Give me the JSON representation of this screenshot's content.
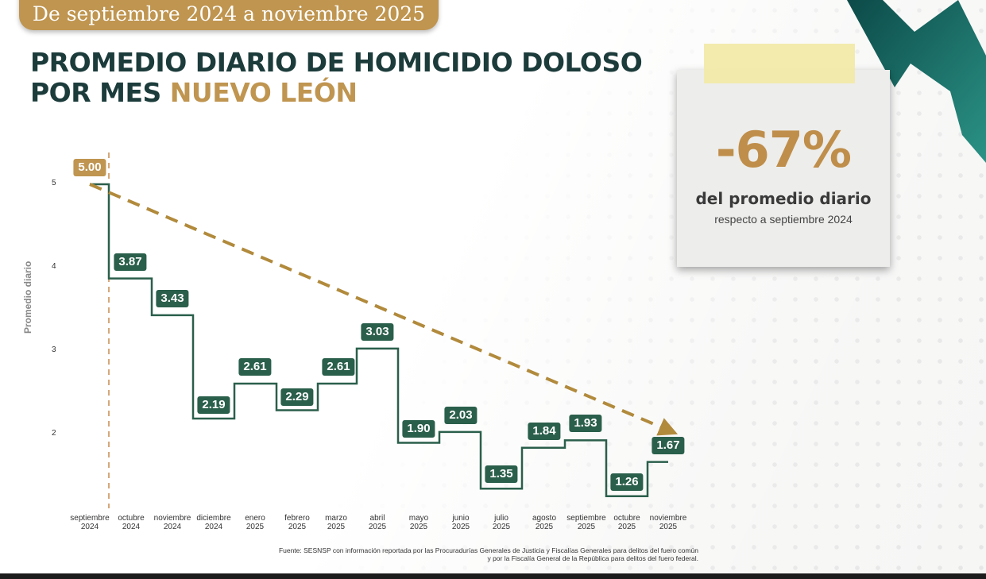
{
  "header": {
    "range": "De septiembre 2024 a noviembre 2025",
    "title_line1": "PROMEDIO DIARIO DE HOMICIDIO DOLOSO",
    "title_line2_prefix": "POR MES",
    "title_line2_accent": "NUEVO LEÓN"
  },
  "callout": {
    "percent": "-67%",
    "line1": "del promedio diario",
    "line2": "respecto a septiembre 2024"
  },
  "source": {
    "line1": "Fuente: SESNSP con información reportada por las Procuradurías Generales de Justicia y Fiscalías Generales para delitos del fuero común",
    "line2": "y por la Fiscalía General de la República para delitos del fuero federal."
  },
  "colors": {
    "accent_gold": "#bf9550",
    "line_green": "#2a5f4b",
    "title_dark": "#1c3b3b"
  },
  "chart_data": {
    "type": "line",
    "subtype": "step",
    "title": "Promedio diario de homicidio doloso por mes Nuevo León",
    "xlabel": "",
    "ylabel": "Promedio diario",
    "yticks": [
      "5",
      "4",
      "3",
      "2"
    ],
    "ylim": [
      1.1,
      5.1
    ],
    "categories": [
      [
        "septiembre",
        "2024"
      ],
      [
        "octubre",
        "2024"
      ],
      [
        "noviembre",
        "2024"
      ],
      [
        "diciembre",
        "2024"
      ],
      [
        "enero",
        "2025"
      ],
      [
        "febrero",
        "2025"
      ],
      [
        "marzo",
        "2025"
      ],
      [
        "abril",
        "2025"
      ],
      [
        "mayo",
        "2025"
      ],
      [
        "junio",
        "2025"
      ],
      [
        "julio",
        "2025"
      ],
      [
        "agosto",
        "2025"
      ],
      [
        "septiembre",
        "2025"
      ],
      [
        "octubre",
        "2025"
      ],
      [
        "noviembre",
        "2025"
      ]
    ],
    "values": [
      5.0,
      3.87,
      3.43,
      2.19,
      2.61,
      2.29,
      2.61,
      3.03,
      1.9,
      2.03,
      1.35,
      1.84,
      1.93,
      1.26,
      1.67
    ],
    "labels": [
      "5.00",
      "3.87",
      "3.43",
      "2.19",
      "2.61",
      "2.29",
      "2.61",
      "3.03",
      "1.90",
      "2.03",
      "1.35",
      "1.84",
      "1.93",
      "1.26",
      "1.67"
    ],
    "trend": {
      "from": 5.0,
      "to": 1.67,
      "style": "dashed-arrow"
    },
    "reference_line": "vertical dashed at septiembre 2024",
    "grid": false,
    "legend": null
  }
}
